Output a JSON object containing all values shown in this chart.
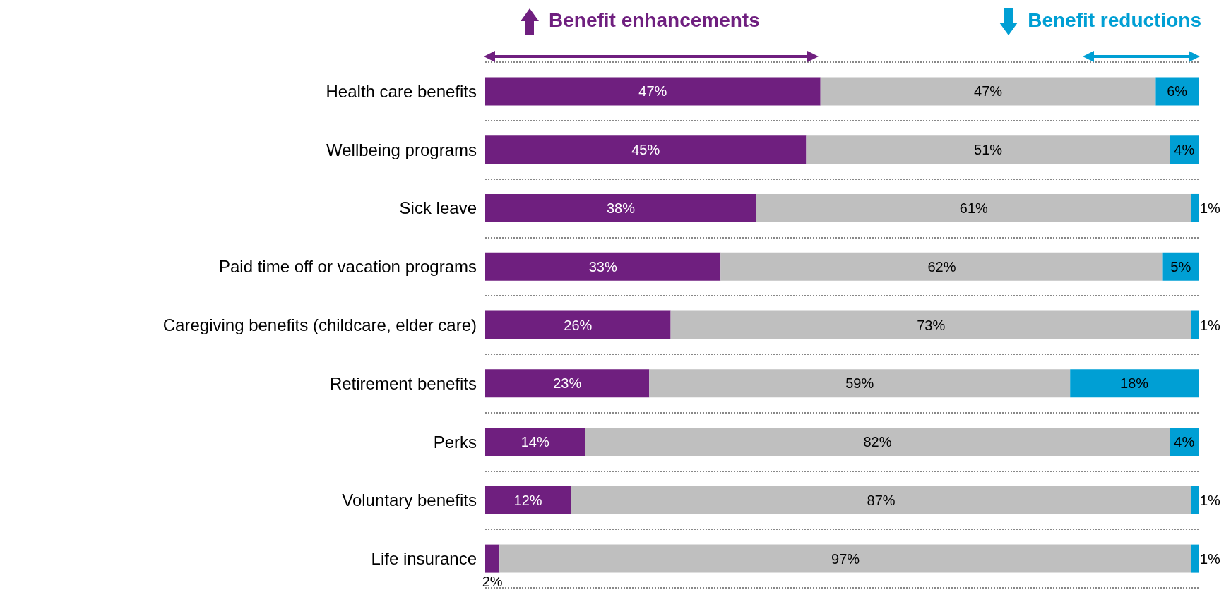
{
  "chart_data": {
    "type": "bar",
    "orientation": "horizontal",
    "stacked": true,
    "grid": "y",
    "legend": "top",
    "categories": [
      "Health care benefits",
      "Wellbeing programs",
      "Sick leave",
      "Paid time off or vacation programs",
      "Caregiving benefits (childcare, elder care)",
      "Retirement benefits",
      "Perks",
      "Voluntary benefits",
      "Life insurance"
    ],
    "series": [
      {
        "name": "Benefit enhancements",
        "color": "#6f1f7f",
        "values": [
          47,
          45,
          38,
          33,
          26,
          23,
          14,
          12,
          2
        ],
        "value_labels": [
          "47%",
          "45%",
          "38%",
          "33%",
          "26%",
          "23%",
          "14%",
          "12%",
          "2%"
        ]
      },
      {
        "color": "#bfbfbf",
        "values": [
          47,
          51,
          61,
          62,
          73,
          59,
          82,
          87,
          97
        ],
        "value_labels": [
          "47%",
          "51%",
          "61%",
          "62%",
          "73%",
          "59%",
          "82%",
          "87%",
          "97%"
        ]
      },
      {
        "name": "Benefit reductions",
        "color": "#009fd4",
        "values": [
          6,
          4,
          1,
          5,
          1,
          18,
          4,
          1,
          1
        ],
        "value_labels": [
          "6%",
          "4%",
          "1%",
          "5%",
          "1%",
          "18%",
          "4%",
          "1%",
          "1%"
        ]
      }
    ]
  }
}
